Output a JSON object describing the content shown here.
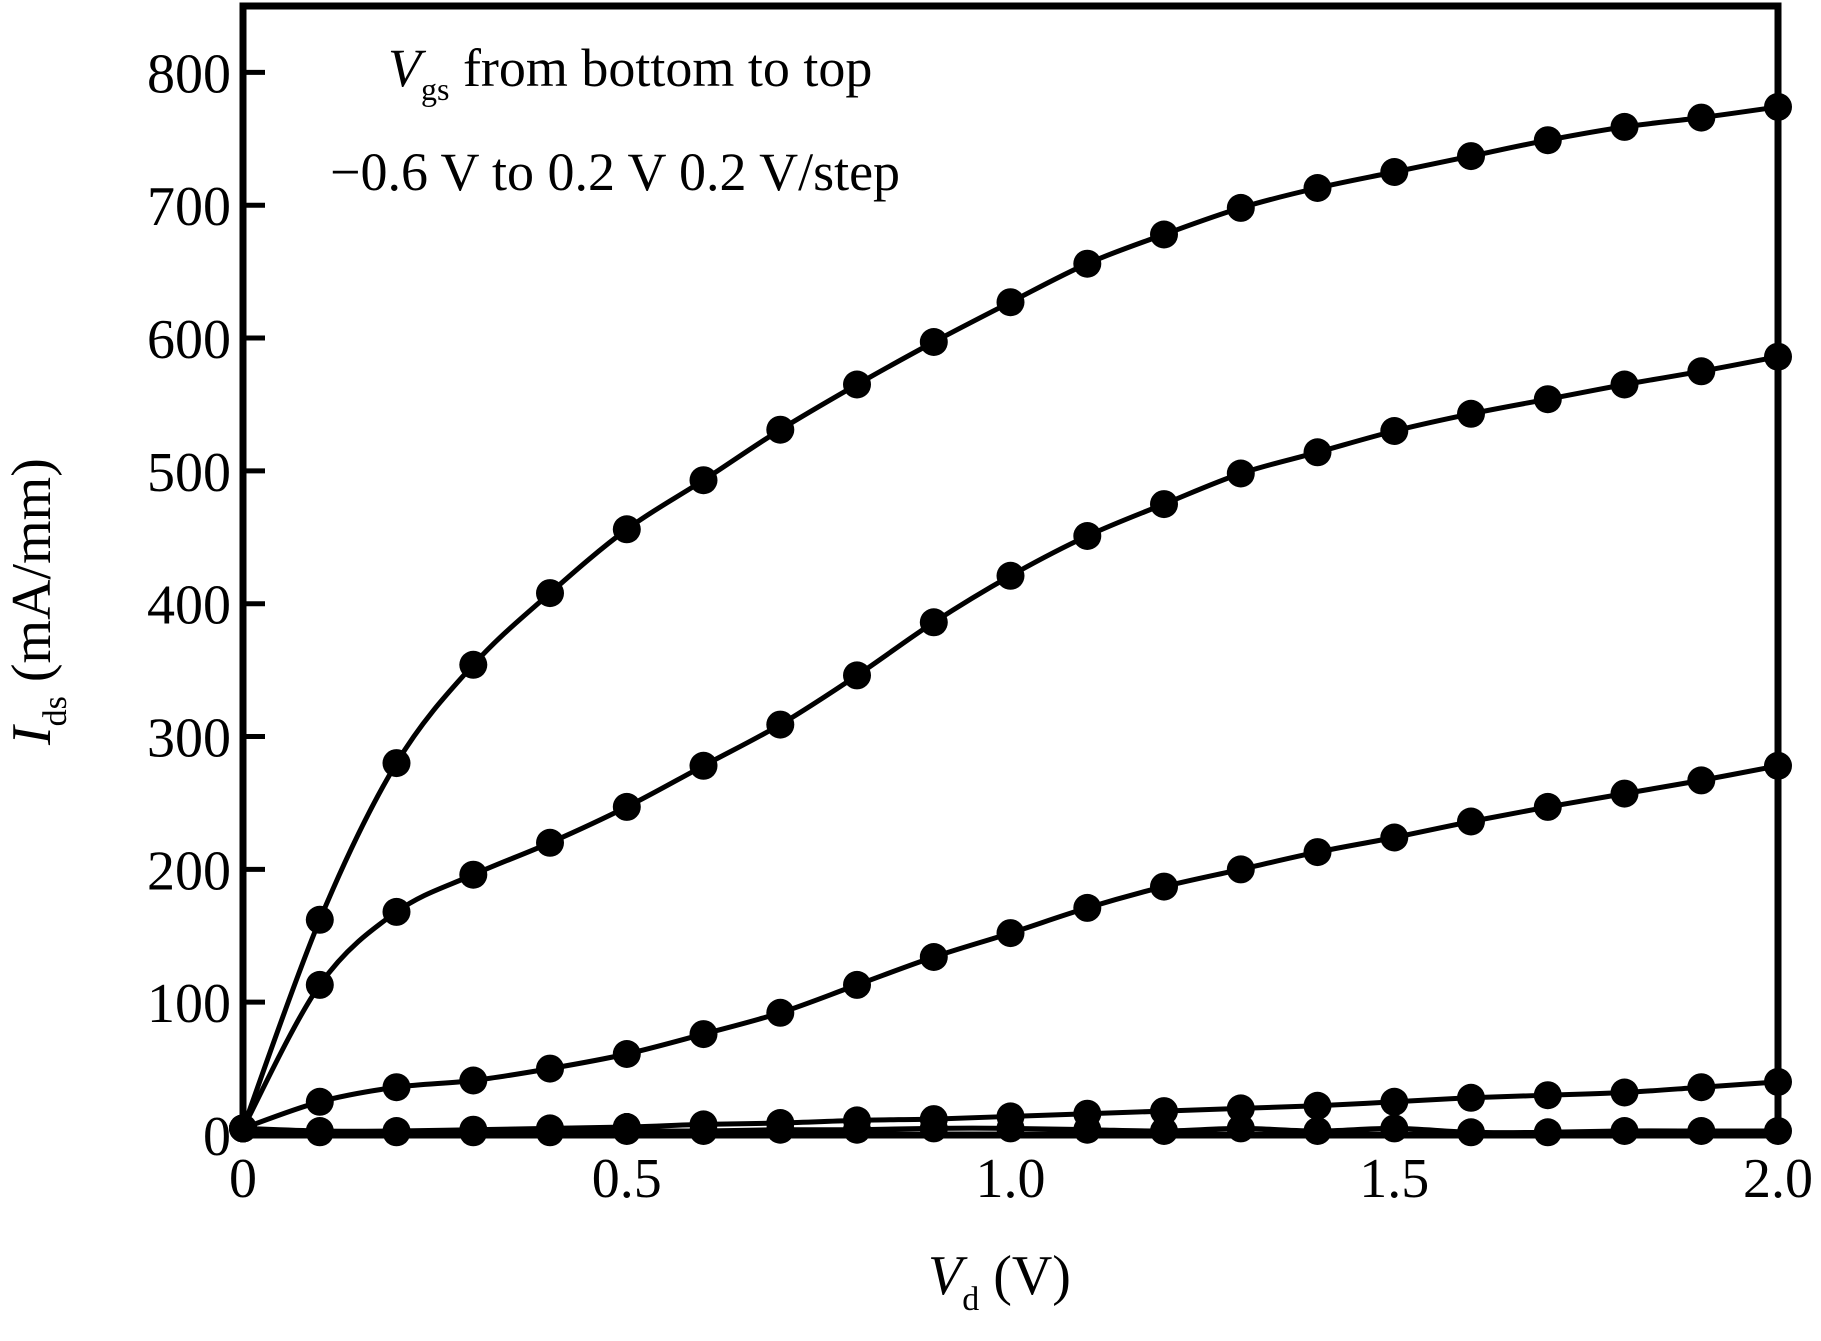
{
  "chart_data": {
    "type": "line",
    "title": "",
    "annotation": {
      "line1_var": "V",
      "line1_sub": "gs",
      "line1_text": " from bottom to top",
      "line2_text": "−0.6 V to 0.2 V 0.2 V/step"
    },
    "xlabel": {
      "var": "V",
      "sub": "d",
      "unit": " (V)"
    },
    "ylabel": {
      "var": "I",
      "sub": "ds",
      "unit": " (mA/mm)"
    },
    "xlim": [
      0,
      2.0
    ],
    "ylim": [
      0,
      850
    ],
    "xticks": [
      0,
      0.5,
      1.0,
      1.5,
      2.0
    ],
    "xtick_labels": [
      "0",
      "0.5",
      "1.0",
      "1.5",
      "2.0"
    ],
    "yticks": [
      0,
      100,
      200,
      300,
      400,
      500,
      600,
      700,
      800
    ],
    "ytick_labels": [
      "0",
      "100",
      "200",
      "300",
      "400",
      "500",
      "600",
      "700",
      "800"
    ],
    "grid": false,
    "x": [
      0,
      0.1,
      0.2,
      0.3,
      0.4,
      0.5,
      0.6,
      0.7,
      0.8,
      0.9,
      1.0,
      1.1,
      1.2,
      1.3,
      1.4,
      1.5,
      1.6,
      1.7,
      1.8,
      1.9,
      2.0
    ],
    "series": [
      {
        "values": [
          5,
          2,
          2,
          2,
          2,
          3,
          3,
          4,
          4,
          5,
          5,
          4,
          3,
          5,
          3,
          5,
          2,
          2,
          3,
          3,
          3
        ]
      },
      {
        "values": [
          5,
          3,
          3,
          4,
          5,
          6,
          8,
          9,
          11,
          12,
          14,
          16,
          18,
          20,
          22,
          25,
          28,
          30,
          32,
          36,
          40
        ]
      },
      {
        "values": [
          5,
          25,
          36,
          41,
          50,
          61,
          76,
          92,
          113,
          134,
          152,
          171,
          187,
          200,
          213,
          224,
          236,
          247,
          257,
          267,
          278
        ]
      },
      {
        "values": [
          5,
          113,
          168,
          196,
          220,
          247,
          278,
          309,
          346,
          386,
          421,
          451,
          475,
          498,
          514,
          530,
          543,
          554,
          565,
          575,
          586
        ]
      },
      {
        "values": [
          5,
          162,
          280,
          354,
          408,
          456,
          493,
          531,
          565,
          597,
          627,
          656,
          678,
          698,
          713,
          725,
          737,
          749,
          759,
          766,
          774
        ]
      }
    ]
  }
}
